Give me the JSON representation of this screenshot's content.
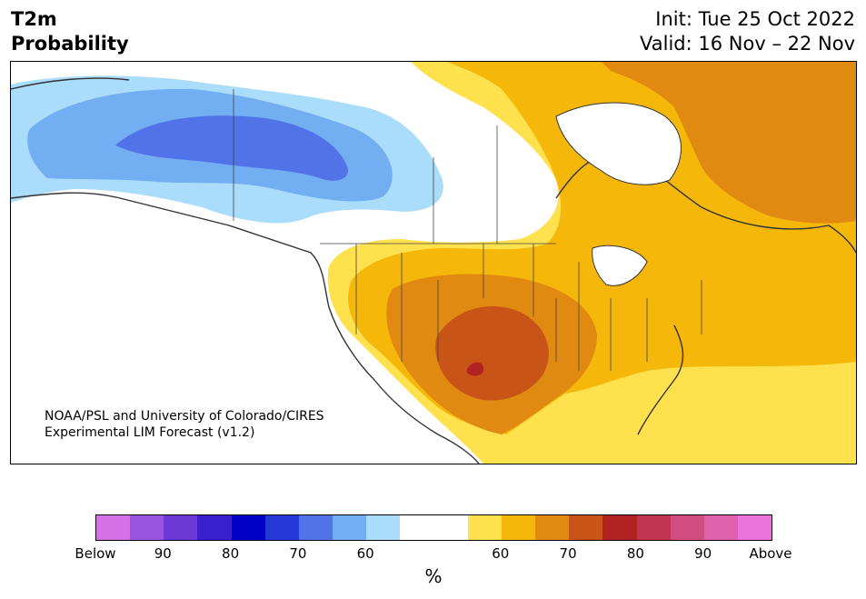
{
  "title": {
    "left_line1": "T2m",
    "left_line2": "Probability",
    "right_line1": "Init: Tue 25 Oct 2022",
    "right_line2": "Valid: 16 Nov – 22 Nov"
  },
  "credit": {
    "line1": "NOAA/PSL and University of Colorado/CIRES",
    "line2": "Experimental LIM Forecast (v1.2)"
  },
  "colorbar": {
    "colors": [
      "#d670e6",
      "#9a55e0",
      "#6c38d6",
      "#3a1fcf",
      "#0000c8",
      "#2538d8",
      "#5073e8",
      "#73adf2",
      "#aadcfb",
      "#ffffff",
      "#ffffff",
      "#ffe14d",
      "#f4b70a",
      "#e08a12",
      "#c95418",
      "#b12222",
      "#c0354f",
      "#d14d7f",
      "#de62ab",
      "#ea74dc"
    ],
    "labels": [
      "Below",
      "90",
      "80",
      "70",
      "60",
      "60",
      "70",
      "80",
      "90",
      "Above"
    ],
    "unit": "%"
  },
  "legend_colors": {
    "cold_light": "#aadcfb",
    "cold_mid": "#73adf2",
    "cold_strong": "#5073e8",
    "warm_light": "#ffe14d",
    "warm_mid": "#f4b70a",
    "warm_strong": "#e08a12",
    "warm_stronger": "#c95418",
    "warm_max": "#b12222"
  }
}
